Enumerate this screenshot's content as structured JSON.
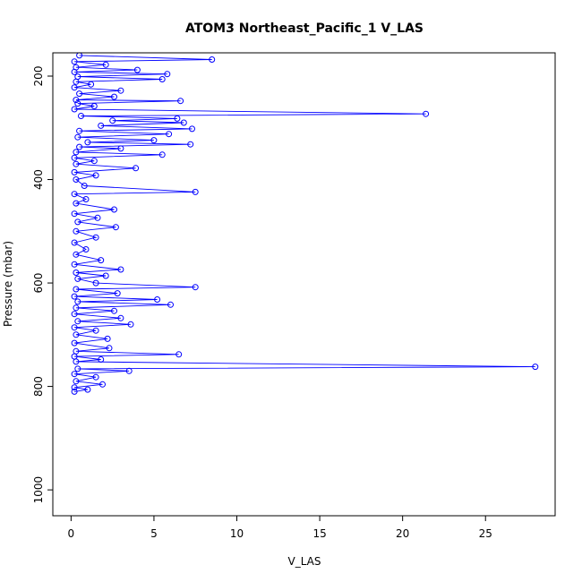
{
  "chart_data": {
    "type": "line",
    "title": "ATOM3 Northeast_Pacific_1 V_LAS",
    "xlabel": "V_LAS",
    "ylabel": "Pressure (mbar)",
    "xlim": [
      -1.1,
      29.2
    ],
    "ylim": [
      1050,
      155
    ],
    "y_axis_inverted": true,
    "x_ticks": [
      0,
      5,
      10,
      15,
      20,
      25
    ],
    "y_ticks": [
      200,
      400,
      600,
      800,
      1000
    ],
    "grid": false,
    "legend": "none",
    "color": "#0000ff",
    "marker": "open-circle",
    "series": [
      {
        "points": [
          [
            0.5,
            160
          ],
          [
            8.5,
            168
          ],
          [
            0.2,
            172
          ],
          [
            2.1,
            178
          ],
          [
            0.3,
            183
          ],
          [
            4.0,
            188
          ],
          [
            0.2,
            192
          ],
          [
            5.8,
            196
          ],
          [
            0.4,
            201
          ],
          [
            5.5,
            206
          ],
          [
            0.3,
            211
          ],
          [
            1.2,
            216
          ],
          [
            0.2,
            222
          ],
          [
            3.0,
            228
          ],
          [
            0.5,
            234
          ],
          [
            2.6,
            240
          ],
          [
            0.3,
            246
          ],
          [
            6.6,
            248
          ],
          [
            0.4,
            253
          ],
          [
            1.4,
            258
          ],
          [
            0.2,
            264
          ],
          [
            21.4,
            273
          ],
          [
            0.6,
            277
          ],
          [
            6.4,
            282
          ],
          [
            2.5,
            286
          ],
          [
            6.8,
            290
          ],
          [
            1.8,
            296
          ],
          [
            7.3,
            302
          ],
          [
            0.5,
            306
          ],
          [
            5.9,
            312
          ],
          [
            0.4,
            318
          ],
          [
            5.0,
            324
          ],
          [
            1.0,
            328
          ],
          [
            7.2,
            332
          ],
          [
            0.5,
            337
          ],
          [
            3.0,
            340
          ],
          [
            0.3,
            347
          ],
          [
            5.5,
            352
          ],
          [
            0.2,
            358
          ],
          [
            1.4,
            364
          ],
          [
            0.3,
            370
          ],
          [
            3.9,
            378
          ],
          [
            0.2,
            386
          ],
          [
            1.5,
            392
          ],
          [
            0.3,
            400
          ],
          [
            0.8,
            412
          ],
          [
            7.5,
            424
          ],
          [
            0.2,
            428
          ],
          [
            0.9,
            438
          ],
          [
            0.3,
            446
          ],
          [
            2.6,
            458
          ],
          [
            0.2,
            466
          ],
          [
            1.6,
            474
          ],
          [
            0.4,
            482
          ],
          [
            2.7,
            492
          ],
          [
            0.3,
            500
          ],
          [
            1.5,
            512
          ],
          [
            0.2,
            522
          ],
          [
            0.9,
            535
          ],
          [
            0.3,
            545
          ],
          [
            1.8,
            556
          ],
          [
            0.2,
            564
          ],
          [
            3.0,
            574
          ],
          [
            0.3,
            580
          ],
          [
            2.1,
            586
          ],
          [
            0.4,
            592
          ],
          [
            1.5,
            600
          ],
          [
            7.5,
            608
          ],
          [
            0.3,
            612
          ],
          [
            2.8,
            620
          ],
          [
            0.2,
            626
          ],
          [
            5.2,
            632
          ],
          [
            0.4,
            636
          ],
          [
            6.0,
            642
          ],
          [
            0.3,
            648
          ],
          [
            2.6,
            654
          ],
          [
            0.2,
            660
          ],
          [
            3.0,
            668
          ],
          [
            0.4,
            674
          ],
          [
            3.6,
            680
          ],
          [
            0.2,
            686
          ],
          [
            1.5,
            692
          ],
          [
            0.3,
            700
          ],
          [
            2.2,
            708
          ],
          [
            0.2,
            716
          ],
          [
            2.3,
            726
          ],
          [
            0.3,
            732
          ],
          [
            6.5,
            738
          ],
          [
            0.2,
            742
          ],
          [
            1.8,
            748
          ],
          [
            0.3,
            752
          ],
          [
            28.0,
            762
          ],
          [
            0.4,
            766
          ],
          [
            3.5,
            770
          ],
          [
            0.2,
            776
          ],
          [
            1.5,
            782
          ],
          [
            0.3,
            790
          ],
          [
            1.9,
            796
          ],
          [
            0.2,
            802
          ],
          [
            1.0,
            806
          ],
          [
            0.2,
            810
          ]
        ]
      }
    ]
  }
}
